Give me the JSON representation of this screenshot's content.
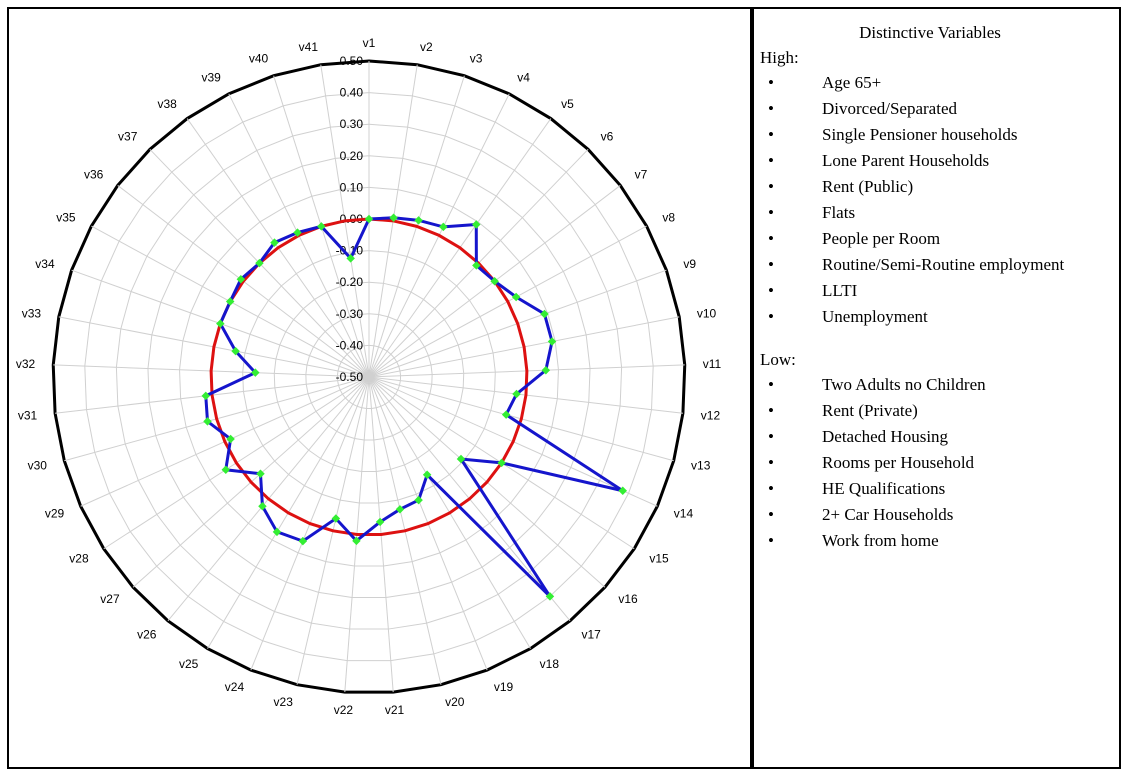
{
  "legend": {
    "title": "Distinctive Variables",
    "high_heading": "High:",
    "high_items": [
      "Age 65+",
      "Divorced/Separated",
      "Single Pensioner households",
      "Lone Parent Households",
      "Rent (Public)",
      "Flats",
      "People per Room",
      "Routine/Semi-Routine employment",
      "LLTI",
      "Unemployment"
    ],
    "low_heading": "Low:",
    "low_items": [
      "Two Adults no Children",
      "Rent (Private)",
      "Detached Housing",
      "Rooms per Household",
      "HE Qualifications",
      "2+ Car Households",
      "Work from home"
    ]
  },
  "chart_data": {
    "type": "radar",
    "categories": [
      "v1",
      "v2",
      "v3",
      "v4",
      "v5",
      "v6",
      "v7",
      "v8",
      "v9",
      "v10",
      "v11",
      "v12",
      "v13",
      "v14",
      "v15",
      "v16",
      "v17",
      "v18",
      "v19",
      "v20",
      "v21",
      "v22",
      "v23",
      "v24",
      "v25",
      "v26",
      "v27",
      "v28",
      "v29",
      "v30",
      "v31",
      "v32",
      "v33",
      "v34",
      "v35",
      "v36",
      "v37",
      "v38",
      "v39",
      "v40",
      "v41"
    ],
    "r_ticks": [
      "-0.50",
      "-0.40",
      "-0.30",
      "-0.20",
      "-0.10",
      "0.00",
      "0.10",
      "0.20",
      "0.30",
      "0.40",
      "0.50"
    ],
    "rlim": [
      -0.5,
      0.5
    ],
    "series": [
      {
        "values": [
          0.0,
          0.01,
          0.02,
          0.03,
          0.09,
          -0.01,
          0.0,
          0.03,
          0.09,
          0.09,
          0.06,
          -0.03,
          -0.05,
          0.38,
          0.0,
          -0.11,
          0.4,
          -0.14,
          -0.08,
          -0.07,
          -0.04,
          0.02,
          -0.04,
          0.06,
          0.07,
          0.03,
          -0.04,
          0.04,
          -0.02,
          0.03,
          0.02,
          -0.14,
          -0.07,
          0.0,
          0.0,
          0.01,
          0.0,
          0.02,
          0.01,
          0.0,
          -0.12
        ],
        "color": "#1515cc",
        "marker_color": "#33ee33"
      },
      {
        "values": [
          0.0,
          0.0,
          0.0,
          0.0,
          0.0,
          0.0,
          0.0,
          0.0,
          0.0,
          0.0,
          0.0,
          0.0,
          0.0,
          0.0,
          0.0,
          0.0,
          0.0,
          0.0,
          0.0,
          0.0,
          0.0,
          0.0,
          0.0,
          0.0,
          0.0,
          0.0,
          0.0,
          0.0,
          0.0,
          0.0,
          0.0,
          0.0,
          0.0,
          0.0,
          0.0,
          0.0,
          0.0,
          0.0,
          0.0,
          0.0,
          0.0
        ],
        "color": "#dd1111"
      }
    ],
    "grid": true
  }
}
